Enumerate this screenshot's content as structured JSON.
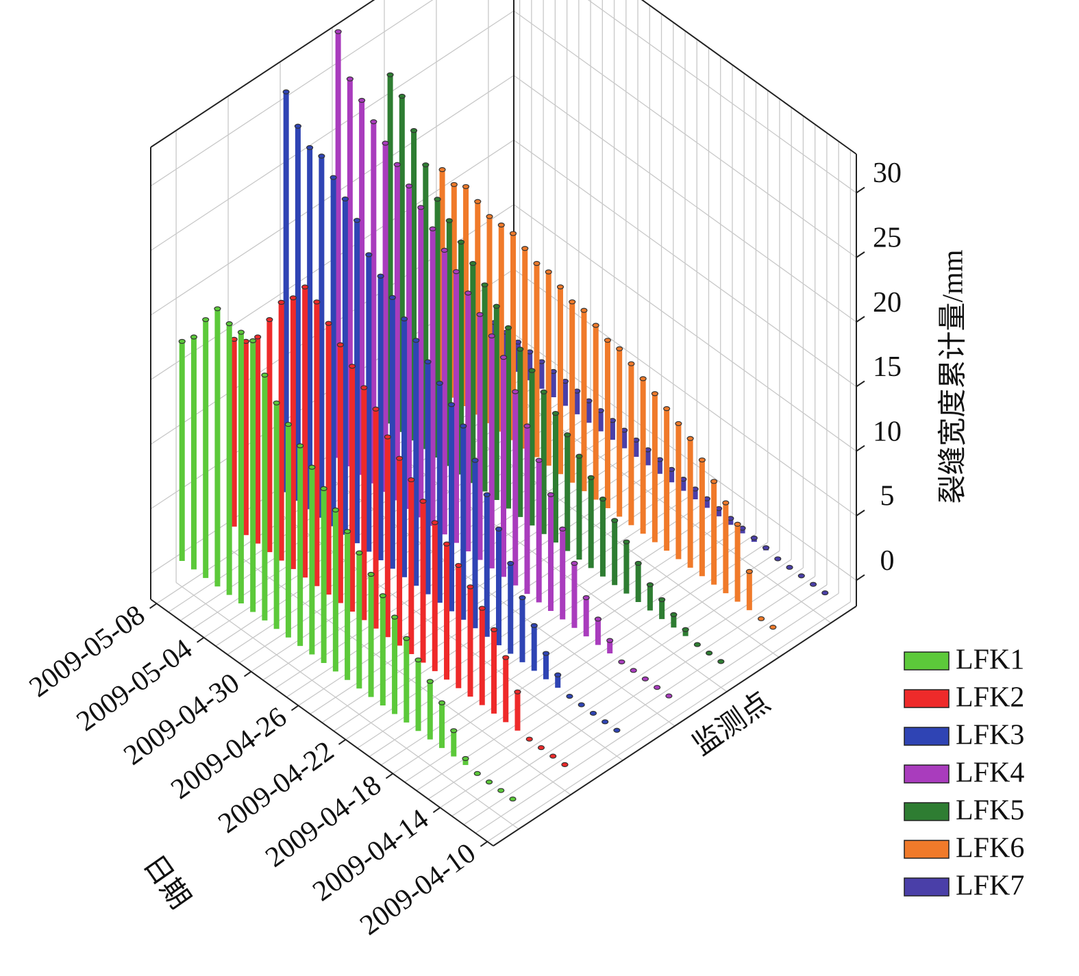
{
  "chart_data": {
    "type": "bar3d",
    "y_label": "裂缝宽度累计量/mm",
    "x_label": "日期",
    "z_label": "监测点",
    "categories": [
      "2009-04-10",
      null,
      null,
      null,
      "2009-04-14",
      null,
      null,
      null,
      "2009-04-18",
      null,
      null,
      null,
      "2009-04-22",
      null,
      null,
      null,
      "2009-04-26",
      null,
      null,
      null,
      "2009-04-30",
      null,
      null,
      null,
      "2009-05-04",
      null,
      null,
      null,
      "2009-05-08"
    ],
    "ylim": [
      -2,
      33
    ],
    "yticks": [
      0,
      5,
      10,
      15,
      20,
      25,
      30
    ],
    "grid": true,
    "legend": "lower right",
    "series": [
      {
        "name": "LFK1",
        "color": "#5cc93a",
        "values": [
          0,
          0,
          0,
          0,
          0.5,
          2,
          3.5,
          4.5,
          5.5,
          6.5,
          7.5,
          8.5,
          9.5,
          10.5,
          11.5,
          12.5,
          13.5,
          14.5,
          15.5,
          16.5,
          17.5,
          19,
          21,
          21,
          21,
          21.5,
          20,
          18,
          17
        ]
      },
      {
        "name": "LFK2",
        "color": "#ee2a2a",
        "values": [
          0,
          0,
          0,
          0,
          3,
          5,
          6.5,
          7.5,
          8.5,
          9.5,
          10.5,
          11.5,
          12.5,
          13.5,
          14.5,
          15.5,
          17,
          18,
          19,
          20,
          21,
          22,
          22.5,
          21,
          20,
          18,
          16,
          15,
          14.5
        ]
      },
      {
        "name": "LFK3",
        "color": "#2f44b4",
        "values": [
          0,
          0,
          0,
          0,
          0,
          1,
          2,
          3.5,
          5,
          7,
          9,
          11,
          13,
          15,
          16,
          17,
          18,
          19,
          20,
          21,
          22,
          23,
          25,
          26,
          27,
          28,
          28,
          29,
          31
        ]
      },
      {
        "name": "LFK4",
        "color": "#a93cbd",
        "values": [
          0,
          0,
          0,
          0,
          0,
          1,
          2,
          3,
          5,
          7,
          9,
          11,
          13,
          15,
          17,
          18,
          19,
          20,
          21,
          22,
          23,
          24,
          25,
          26,
          27,
          28,
          29,
          30,
          33
        ]
      },
      {
        "name": "LFK5",
        "color": "#2e7d32",
        "values": [
          0,
          0,
          0,
          0.5,
          1,
          1.5,
          2,
          3,
          4,
          5,
          6,
          7,
          8,
          9,
          10,
          11,
          12,
          13,
          14,
          15,
          16,
          17,
          18,
          19,
          20,
          22,
          24,
          26,
          27
        ]
      },
      {
        "name": "LFK6",
        "color": "#f07a2a",
        "values": [
          0,
          0,
          3,
          6,
          7,
          8,
          9,
          10,
          10.5,
          11,
          11.5,
          12,
          12.5,
          13,
          13,
          13.5,
          14,
          14,
          14.5,
          15,
          15,
          15.5,
          16,
          16,
          16,
          16.5,
          17,
          16.5,
          17
        ]
      },
      {
        "name": "LFK7",
        "color": "#4a3fa8",
        "values": [
          0,
          0,
          0,
          0,
          0,
          0.2,
          0.3,
          0.4,
          0.5,
          0.6,
          0.7,
          0.8,
          0.9,
          1,
          1.1,
          1.2,
          1.3,
          1.4,
          1.5,
          1.6,
          1.7,
          1.8,
          1.9,
          2,
          2.1,
          2.2,
          2.3,
          2.4,
          2.5
        ]
      }
    ]
  }
}
